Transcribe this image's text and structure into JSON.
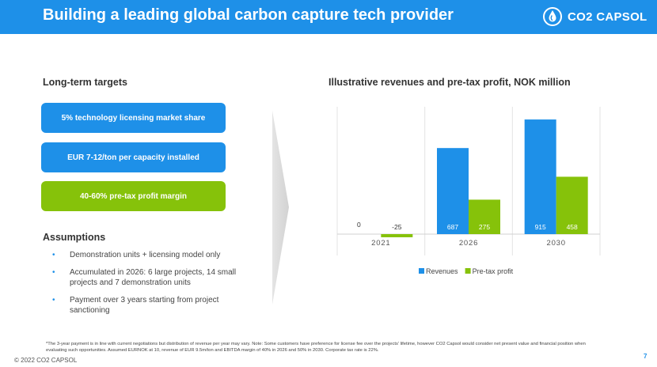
{
  "header": {
    "title": "Building a leading global carbon capture tech provider",
    "logo_text": "CO2 CAPSOL"
  },
  "targets": {
    "title": "Long-term targets",
    "items": [
      "5% technology licensing market share",
      "EUR 7-12/ton per capacity installed",
      "40-60% pre-tax profit margin"
    ]
  },
  "assumptions": {
    "title": "Assumptions",
    "items": [
      "Demonstration units + licensing model only",
      "Accumulated in 2026: 6 large projects, 14 small projects and 7 demonstration units",
      "Payment over 3 years starting from project sanctioning"
    ],
    "bullet": "•"
  },
  "chart_data": {
    "type": "bar",
    "title": "Illustrative revenues and pre-tax profit, NOK million",
    "categories": [
      "2021",
      "2026",
      "2030"
    ],
    "series": [
      {
        "name": "Revenues",
        "values": [
          0,
          687,
          915
        ],
        "labels": [
          "0",
          "687",
          "915"
        ],
        "color": "#1e90e8"
      },
      {
        "name": "Pre-tax profit",
        "values": [
          -25,
          275,
          458
        ],
        "labels": [
          "-25",
          "275",
          "458"
        ],
        "color": "#86c20a"
      }
    ],
    "ylim": [
      -40,
      1000
    ],
    "legend": "bottom",
    "grid": false
  },
  "footnote": "*The 3-year payment is in line with current negotiations but distribution of revenue per year may vary. Note: Some customers have preference for license fee over the projects' lifetime, however CO2 Capsol would consider net present value and financial position when evaluating such opportunities. Assumed EURNOK at 10, revenue of EUR 9.5m/ton and EBITDA margin of 40% in 2026 and 50% in 2030. Corporate tax rate is 22%.",
  "copyright": "© 2022 CO2 CAPSOL",
  "page_number": "7"
}
